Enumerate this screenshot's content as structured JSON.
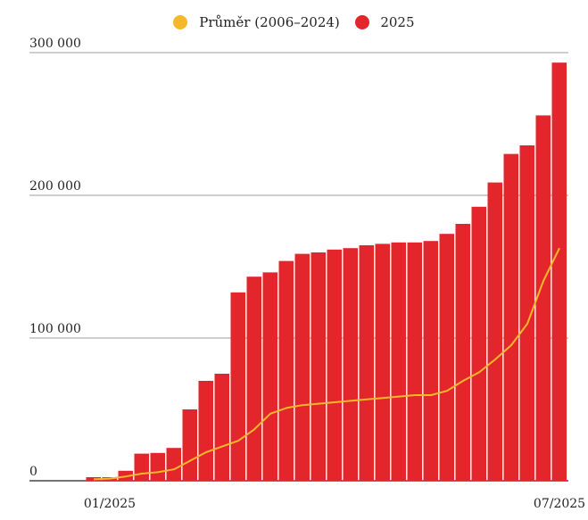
{
  "colors": {
    "bars": "#e3262b",
    "line": "#f5b82a",
    "grid": "#9e9e9e",
    "axis": "#222222"
  },
  "chart_data": {
    "type": "bar",
    "grid": true,
    "legend_position": "top-center",
    "ylim": [
      0,
      300000
    ],
    "yticks": [
      {
        "value": 0,
        "label": "0"
      },
      {
        "value": 100000,
        "label": "100 000"
      },
      {
        "value": 200000,
        "label": "200 000"
      },
      {
        "value": 300000,
        "label": "300 000"
      }
    ],
    "xticks": [
      {
        "index": 1,
        "label": "01/2025"
      },
      {
        "index": 29,
        "label": "07/2025"
      }
    ],
    "series": [
      {
        "name": "2025",
        "type": "bar",
        "color": "#e3262b",
        "values": [
          2500,
          2500,
          7000,
          19000,
          19500,
          23000,
          50000,
          70000,
          75000,
          132000,
          143000,
          146000,
          154000,
          159000,
          160000,
          162000,
          163000,
          165000,
          166000,
          167000,
          167000,
          168000,
          173000,
          180000,
          192000,
          209000,
          229000,
          235000,
          256000,
          293000
        ]
      },
      {
        "name": "Průměr (2006–2024)",
        "type": "line",
        "color": "#f5b82a",
        "values": [
          1000,
          1500,
          3000,
          5000,
          6000,
          8000,
          14000,
          20000,
          24000,
          28000,
          36000,
          47000,
          51000,
          53000,
          54000,
          55000,
          56000,
          57000,
          58000,
          59000,
          60000,
          60000,
          63000,
          70000,
          76000,
          85000,
          95000,
          110000,
          140000,
          163000
        ]
      }
    ]
  }
}
